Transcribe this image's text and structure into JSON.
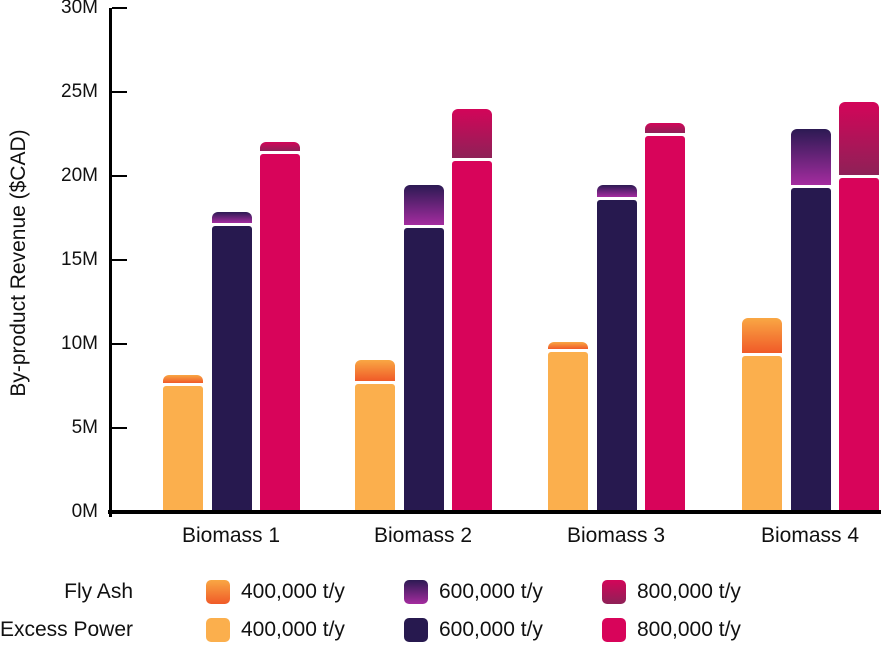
{
  "chart_data": {
    "type": "bar",
    "stacked": true,
    "legend_position": "bottom",
    "grid": false,
    "categories": [
      "Biomass 1",
      "Biomass 2",
      "Biomass 3",
      "Biomass 4"
    ],
    "xlabel": "",
    "ylabel": "By-product Revenue ($CAD)",
    "ylim_M": [
      0,
      30
    ],
    "y_ticks": [
      {
        "label": "0M",
        "value_M": 0
      },
      {
        "label": "5M",
        "value_M": 5
      },
      {
        "label": "10M",
        "value_M": 10
      },
      {
        "label": "15M",
        "value_M": 15
      },
      {
        "label": "20M",
        "value_M": 20
      },
      {
        "label": "25M",
        "value_M": 25
      },
      {
        "label": "30M",
        "value_M": 30
      }
    ],
    "series": [
      {
        "name": "Excess Power 400,000 t/y",
        "component": "Excess Power",
        "stack": "400,000 t/y",
        "values_M": [
          7.5,
          7.6,
          9.5,
          9.3
        ],
        "color": "#FBAF4D"
      },
      {
        "name": "Fly Ash 400,000 t/y",
        "component": "Fly Ash",
        "stack": "400,000 t/y",
        "values_M": [
          0.45,
          1.3,
          0.45,
          2.1
        ],
        "gradient": [
          "#F9A744",
          "#F05A28"
        ]
      },
      {
        "name": "Excess Power 600,000 t/y",
        "component": "Excess Power",
        "stack": "600,000 t/y",
        "values_M": [
          17.0,
          16.9,
          18.6,
          19.3
        ],
        "color": "#27194F"
      },
      {
        "name": "Fly Ash 600,000 t/y",
        "component": "Fly Ash",
        "stack": "600,000 t/y",
        "values_M": [
          0.7,
          2.4,
          0.7,
          3.3
        ],
        "gradient": [
          "#2C1A53",
          "#A42C9F"
        ]
      },
      {
        "name": "Excess Power 800,000 t/y",
        "component": "Excess Power",
        "stack": "800,000 t/y",
        "values_M": [
          21.3,
          20.9,
          22.4,
          19.9
        ],
        "color": "#D8045A"
      },
      {
        "name": "Fly Ash 800,000 t/y",
        "component": "Fly Ash",
        "stack": "800,000 t/y",
        "values_M": [
          0.55,
          2.9,
          0.6,
          4.3
        ],
        "gradient": [
          "#D30559",
          "#8E2157"
        ]
      }
    ],
    "stack_totals_M": {
      "400,000 t/y": [
        7.95,
        8.9,
        9.95,
        11.4
      ],
      "600,000 t/y": [
        17.7,
        19.3,
        19.3,
        22.6
      ],
      "800,000 t/y": [
        21.85,
        23.8,
        23.0,
        24.2
      ]
    }
  },
  "legend": {
    "rows": [
      {
        "label": "Fly Ash",
        "items": [
          {
            "label": "400,000 t/y",
            "gradient": [
              "#F9A744",
              "#F05A28"
            ]
          },
          {
            "label": "600,000 t/y",
            "gradient": [
              "#2C1A53",
              "#A42C9F"
            ]
          },
          {
            "label": "800,000 t/y",
            "gradient": [
              "#D30559",
              "#8E2157"
            ]
          }
        ]
      },
      {
        "label": "Excess Power",
        "items": [
          {
            "label": "400,000 t/y",
            "color": "#FBAF4D"
          },
          {
            "label": "600,000 t/y",
            "color": "#27194F"
          },
          {
            "label": "800,000 t/y",
            "color": "#D8045A"
          }
        ]
      }
    ]
  },
  "colors": {
    "axis": "#000000",
    "text": "#111111",
    "separator": "#ffffff"
  }
}
